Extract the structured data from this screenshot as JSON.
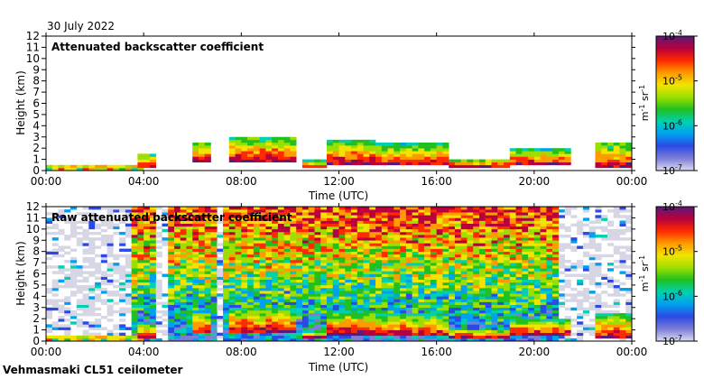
{
  "date_label": "30 July 2022",
  "instrument_label": "Vehmasmaki CL51 ceilometer",
  "colors": {
    "clear": "#ffffff",
    "noise": "#d6d6e4",
    "colormap": [
      "#dcdcf2",
      "#7d7dd8",
      "#2b49e4",
      "#00a0f0",
      "#00d0b0",
      "#20c020",
      "#9cde00",
      "#f0e400",
      "#ff9a00",
      "#ff2a00",
      "#b8003c",
      "#5a1a78"
    ]
  },
  "chart_data": [
    {
      "type": "heatmap",
      "title": "Attenuated backscatter coefficient",
      "xlabel": "Time (UTC)",
      "ylabel": "Height (km)",
      "xlim": [
        0,
        24
      ],
      "ylim": [
        0,
        12
      ],
      "xticks": [
        "00:00",
        "04:00",
        "08:00",
        "12:00",
        "16:00",
        "20:00",
        "00:00"
      ],
      "yticks": [
        "0",
        "1",
        "2",
        "3",
        "4",
        "5",
        "6",
        "7",
        "8",
        "9",
        "10",
        "11",
        "12"
      ],
      "colorbar": {
        "scale": "log",
        "range": [
          1e-07,
          0.0001
        ],
        "tick_labels": [
          "10-4",
          "10-5",
          "10-6",
          "10-7"
        ],
        "tick_values": [
          0.0001,
          1e-05,
          1e-06,
          1e-07
        ],
        "unit_label": "m-1 sr-1"
      },
      "cloud_layers": [
        {
          "t_start": 0.0,
          "t_end": 3.8,
          "base_km": 0.2,
          "top_km": 0.5
        },
        {
          "t_start": 3.8,
          "t_end": 4.6,
          "base_km": 0.3,
          "top_km": 1.5
        },
        {
          "t_start": 6.0,
          "t_end": 6.8,
          "base_km": 0.7,
          "top_km": 2.6
        },
        {
          "t_start": 7.6,
          "t_end": 10.2,
          "base_km": 0.8,
          "top_km": 3.0
        },
        {
          "t_start": 10.4,
          "t_end": 11.4,
          "base_km": 0.3,
          "top_km": 0.9
        },
        {
          "t_start": 11.4,
          "t_end": 13.6,
          "base_km": 0.6,
          "top_km": 2.7
        },
        {
          "t_start": 13.6,
          "t_end": 16.4,
          "base_km": 0.4,
          "top_km": 2.4
        },
        {
          "t_start": 16.4,
          "t_end": 19.0,
          "base_km": 0.3,
          "top_km": 1.1
        },
        {
          "t_start": 19.0,
          "t_end": 21.6,
          "base_km": 0.5,
          "top_km": 1.9
        },
        {
          "t_start": 22.6,
          "t_end": 24.0,
          "base_km": 0.3,
          "top_km": 2.5
        }
      ],
      "noise_field": false
    },
    {
      "type": "heatmap",
      "title": "Raw attenuated backscatter coefficient",
      "xlabel": "Time (UTC)",
      "ylabel": "Height (km)",
      "xlim": [
        0,
        24
      ],
      "ylim": [
        0,
        12
      ],
      "xticks": [
        "00:00",
        "04:00",
        "08:00",
        "12:00",
        "16:00",
        "20:00",
        "00:00"
      ],
      "yticks": [
        "0",
        "1",
        "2",
        "3",
        "4",
        "5",
        "6",
        "7",
        "8",
        "9",
        "10",
        "11",
        "12"
      ],
      "colorbar": {
        "scale": "log",
        "range": [
          1e-07,
          0.0001
        ],
        "tick_labels": [
          "10-4",
          "10-5",
          "10-6",
          "10-7"
        ],
        "tick_values": [
          0.0001,
          1e-05,
          1e-06,
          1e-07
        ],
        "unit_label": "m-1 sr-1"
      },
      "cloud_layers": [
        {
          "t_start": 0.0,
          "t_end": 3.8,
          "base_km": 0.2,
          "top_km": 0.5
        },
        {
          "t_start": 3.8,
          "t_end": 4.6,
          "base_km": 0.3,
          "top_km": 1.5
        },
        {
          "t_start": 6.0,
          "t_end": 6.8,
          "base_km": 0.7,
          "top_km": 2.6
        },
        {
          "t_start": 7.6,
          "t_end": 10.2,
          "base_km": 0.8,
          "top_km": 3.0
        },
        {
          "t_start": 10.4,
          "t_end": 11.4,
          "base_km": 0.3,
          "top_km": 0.9
        },
        {
          "t_start": 11.4,
          "t_end": 13.6,
          "base_km": 0.6,
          "top_km": 2.7
        },
        {
          "t_start": 13.6,
          "t_end": 16.4,
          "base_km": 0.4,
          "top_km": 2.4
        },
        {
          "t_start": 16.4,
          "t_end": 19.0,
          "base_km": 0.3,
          "top_km": 1.1
        },
        {
          "t_start": 19.0,
          "t_end": 21.6,
          "base_km": 0.5,
          "top_km": 1.9
        },
        {
          "t_start": 22.6,
          "t_end": 24.0,
          "base_km": 0.3,
          "top_km": 2.5
        }
      ],
      "noise_field": true,
      "noisy_daylight_window": [
        3.4,
        21.2
      ],
      "clear_columns": [
        {
          "t_start": 0.3,
          "t_end": 3.4
        },
        {
          "t_start": 4.6,
          "t_end": 5.0
        },
        {
          "t_start": 6.9,
          "t_end": 7.3
        },
        {
          "t_start": 20.9,
          "t_end": 23.0
        }
      ]
    }
  ]
}
